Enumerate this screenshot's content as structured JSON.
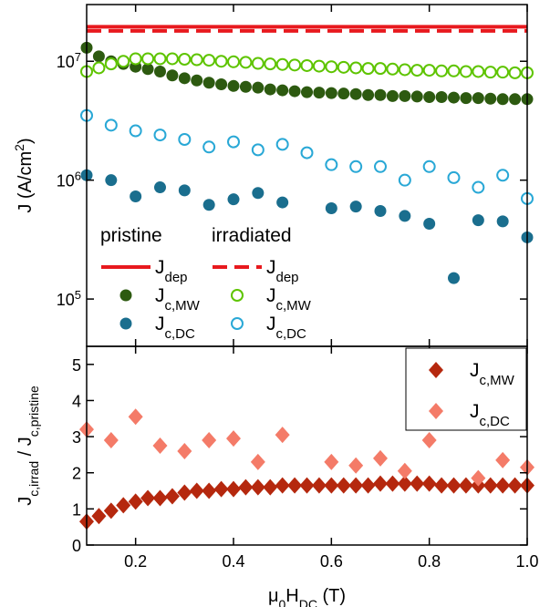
{
  "chart_data": [
    {
      "type": "scatter",
      "ylabel": [
        {
          "text": "J (A/cm"
        },
        {
          "text": "2",
          "style": "super"
        },
        {
          "text": ")"
        }
      ],
      "log_y": true,
      "ylim": [
        40000,
        30000000
      ],
      "yticks": [
        {
          "value": 100000,
          "label": "10",
          "exponent": "5"
        },
        {
          "value": 1000000,
          "label": "10",
          "exponent": "6"
        },
        {
          "value": 10000000,
          "label": "10",
          "exponent": "7"
        }
      ],
      "xlim": [
        0.1,
        1.0
      ],
      "xticks": [
        0.2,
        0.4,
        0.6,
        0.8,
        {
          "value": 1,
          "label": "1.0"
        }
      ],
      "xtick_labels": false,
      "legend_position": "lower left",
      "legend_columns": [
        "pristine",
        "irradiated"
      ],
      "series": [
        {
          "name": "J",
          "subscript": "dep",
          "column": 0,
          "style": "line-solid",
          "color": "#e8191e",
          "values": [
            19500000
          ]
        },
        {
          "name": "J",
          "subscript": "dep",
          "column": 1,
          "style": "line-dashed",
          "color": "#e8191e",
          "values": [
            18000000
          ]
        },
        {
          "name": "J",
          "subscript": "c,MW",
          "column": 0,
          "style": "circle-filled",
          "color": "#2d5a10",
          "x": [
            0.1,
            0.125,
            0.15,
            0.175,
            0.2,
            0.225,
            0.25,
            0.275,
            0.3,
            0.325,
            0.35,
            0.375,
            0.4,
            0.425,
            0.45,
            0.475,
            0.5,
            0.525,
            0.55,
            0.575,
            0.6,
            0.625,
            0.65,
            0.675,
            0.7,
            0.725,
            0.75,
            0.775,
            0.8,
            0.825,
            0.85,
            0.875,
            0.9,
            0.925,
            0.95,
            0.975,
            1.0
          ],
          "values": [
            13000000,
            11000000,
            10000000,
            9500000,
            9000000,
            8600000,
            8200000,
            7600000,
            7200000,
            6900000,
            6600000,
            6400000,
            6200000,
            6100000,
            6000000,
            5800000,
            5700000,
            5600000,
            5500000,
            5450000,
            5400000,
            5350000,
            5300000,
            5200000,
            5200000,
            5100000,
            5100000,
            5050000,
            5000000,
            5000000,
            4950000,
            4900000,
            4900000,
            4850000,
            4800000,
            4800000,
            4800000
          ]
        },
        {
          "name": "J",
          "subscript": "c,MW",
          "column": 1,
          "style": "circle-open",
          "color": "#5ec400",
          "x": [
            0.1,
            0.125,
            0.15,
            0.175,
            0.2,
            0.225,
            0.25,
            0.275,
            0.3,
            0.325,
            0.35,
            0.375,
            0.4,
            0.425,
            0.45,
            0.475,
            0.5,
            0.525,
            0.55,
            0.575,
            0.6,
            0.625,
            0.65,
            0.675,
            0.7,
            0.725,
            0.75,
            0.775,
            0.8,
            0.825,
            0.85,
            0.875,
            0.9,
            0.925,
            0.95,
            0.975,
            1.0
          ],
          "values": [
            8200000,
            8800000,
            9500000,
            10000000,
            10500000,
            10500000,
            10500000,
            10500000,
            10400000,
            10300000,
            10200000,
            10000000,
            9900000,
            9800000,
            9600000,
            9500000,
            9400000,
            9300000,
            9200000,
            9100000,
            9000000,
            8900000,
            8800000,
            8700000,
            8700000,
            8600000,
            8500000,
            8400000,
            8400000,
            8300000,
            8300000,
            8200000,
            8200000,
            8100000,
            8100000,
            8000000,
            8000000
          ]
        },
        {
          "name": "J",
          "subscript": "c,DC",
          "column": 0,
          "style": "circle-filled",
          "color": "#1a6e8e",
          "x": [
            0.1,
            0.15,
            0.2,
            0.25,
            0.3,
            0.35,
            0.4,
            0.45,
            0.5,
            0.6,
            0.65,
            0.7,
            0.75,
            0.8,
            0.85,
            0.9,
            0.95,
            1.0
          ],
          "values": [
            1100000,
            1000000,
            730000,
            870000,
            820000,
            620000,
            690000,
            780000,
            650000,
            580000,
            600000,
            550000,
            500000,
            430000,
            150000,
            460000,
            450000,
            330000
          ]
        },
        {
          "name": "J",
          "subscript": "c,DC",
          "column": 1,
          "style": "circle-open",
          "color": "#29a8d6",
          "x": [
            0.1,
            0.15,
            0.2,
            0.25,
            0.3,
            0.35,
            0.4,
            0.45,
            0.5,
            0.55,
            0.6,
            0.65,
            0.7,
            0.75,
            0.8,
            0.85,
            0.9,
            0.95,
            1.0
          ],
          "values": [
            3500000,
            2900000,
            2600000,
            2400000,
            2200000,
            1900000,
            2100000,
            1800000,
            2000000,
            1700000,
            1350000,
            1300000,
            1300000,
            1000000,
            1300000,
            1050000,
            870000,
            1100000,
            700000
          ]
        }
      ]
    },
    {
      "type": "scatter",
      "ylabel": [
        {
          "text": "J"
        },
        {
          "text": "c,irrad",
          "style": "sub"
        },
        {
          "text": " / J"
        },
        {
          "text": "c,pristine",
          "style": "sub"
        }
      ],
      "xlabel": [
        {
          "text": "μ"
        },
        {
          "text": "0",
          "style": "sub"
        },
        {
          "text": "H"
        },
        {
          "text": "DC",
          "style": "sub"
        },
        {
          "text": " (T)"
        }
      ],
      "ylim": [
        0,
        5.5
      ],
      "yticks": [
        0,
        1,
        2,
        3,
        4,
        5
      ],
      "xlim": [
        0.1,
        1.0
      ],
      "xticks": [
        0.2,
        0.4,
        0.6,
        0.8,
        {
          "value": 1,
          "label": "1.0"
        }
      ],
      "xtick_labels": true,
      "legend_position": "upper right",
      "series": [
        {
          "name": "J",
          "subscript": "c,MW",
          "style": "diamond",
          "color": "#b5280e",
          "x": [
            0.1,
            0.125,
            0.15,
            0.175,
            0.2,
            0.225,
            0.25,
            0.275,
            0.3,
            0.325,
            0.35,
            0.375,
            0.4,
            0.425,
            0.45,
            0.475,
            0.5,
            0.525,
            0.55,
            0.575,
            0.6,
            0.625,
            0.65,
            0.675,
            0.7,
            0.725,
            0.75,
            0.775,
            0.8,
            0.825,
            0.85,
            0.875,
            0.9,
            0.925,
            0.95,
            0.975,
            1.0
          ],
          "values": [
            0.65,
            0.8,
            0.95,
            1.1,
            1.2,
            1.3,
            1.3,
            1.35,
            1.45,
            1.5,
            1.5,
            1.55,
            1.55,
            1.6,
            1.6,
            1.6,
            1.65,
            1.65,
            1.65,
            1.65,
            1.65,
            1.65,
            1.65,
            1.65,
            1.7,
            1.7,
            1.7,
            1.7,
            1.7,
            1.65,
            1.65,
            1.65,
            1.65,
            1.65,
            1.65,
            1.65,
            1.65
          ]
        },
        {
          "name": "J",
          "subscript": "c,DC",
          "style": "diamond",
          "color": "#f47b68",
          "x": [
            0.1,
            0.15,
            0.2,
            0.25,
            0.3,
            0.35,
            0.4,
            0.45,
            0.5,
            0.6,
            0.65,
            0.7,
            0.75,
            0.8,
            0.9,
            0.95,
            1.0
          ],
          "values": [
            3.2,
            2.9,
            3.55,
            2.75,
            2.6,
            2.9,
            2.95,
            2.3,
            3.05,
            2.3,
            2.2,
            2.4,
            2.05,
            2.9,
            1.85,
            2.35,
            2.15
          ]
        }
      ]
    }
  ]
}
